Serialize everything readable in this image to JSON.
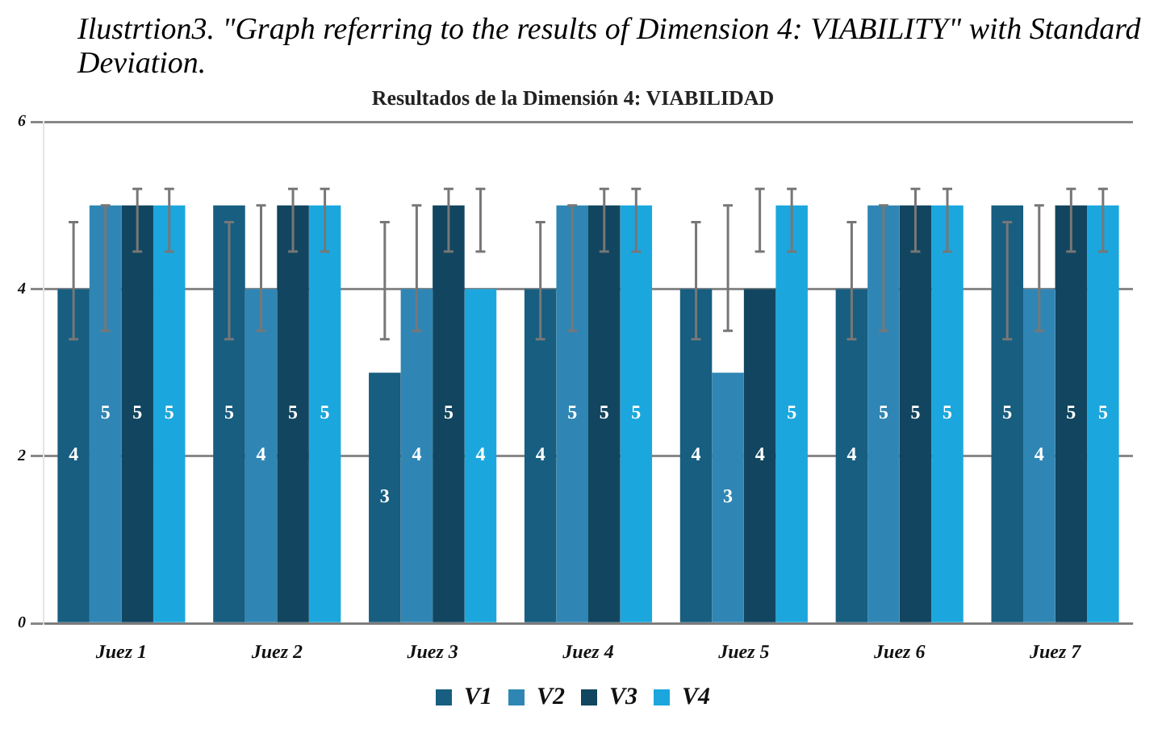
{
  "chart_data": {
    "type": "bar",
    "title": "Resultados de la Dimensión 4: VIABILIDAD",
    "annotations": [
      "Ilustrtion3. \"Graph referring to the results of Dimension 4: VIABILITY\" with Standard Deviation."
    ],
    "categories": [
      "Juez 1",
      "Juez 2",
      "Juez 3",
      "Juez 4",
      "Juez 5",
      "Juez 6",
      "Juez 7"
    ],
    "series": [
      {
        "name": "V1",
        "color": "#175e80",
        "values": [
          4,
          5,
          3,
          4,
          4,
          4,
          5
        ],
        "errors": [
          [
            3.4,
            4.8
          ],
          [
            3.4,
            4.8
          ],
          [
            3.4,
            4.8
          ],
          [
            3.4,
            4.8
          ],
          [
            3.4,
            4.8
          ],
          [
            3.4,
            4.8
          ],
          [
            3.4,
            4.8
          ]
        ]
      },
      {
        "name": "V2",
        "color": "#2f86b4",
        "values": [
          5,
          4,
          4,
          5,
          3,
          5,
          4
        ],
        "errors": [
          [
            3.5,
            5.0
          ],
          [
            3.5,
            5.0
          ],
          [
            3.5,
            5.0
          ],
          [
            3.5,
            5.0
          ],
          [
            3.5,
            5.0
          ],
          [
            3.5,
            5.0
          ],
          [
            3.5,
            5.0
          ]
        ]
      },
      {
        "name": "V3",
        "color": "#12455f",
        "values": [
          5,
          5,
          5,
          5,
          4,
          5,
          5
        ],
        "errors": [
          [
            4.45,
            5.2
          ],
          [
            4.45,
            5.2
          ],
          [
            4.45,
            5.2
          ],
          [
            4.45,
            5.2
          ],
          [
            4.45,
            5.2
          ],
          [
            4.45,
            5.2
          ],
          [
            4.45,
            5.2
          ]
        ]
      },
      {
        "name": "V4",
        "color": "#1ba7dd",
        "values": [
          5,
          5,
          4,
          5,
          5,
          5,
          5
        ],
        "errors": [
          [
            4.45,
            5.2
          ],
          [
            4.45,
            5.2
          ],
          [
            4.45,
            5.2
          ],
          [
            4.45,
            5.2
          ],
          [
            4.45,
            5.2
          ],
          [
            4.45,
            5.2
          ],
          [
            4.45,
            5.2
          ]
        ]
      }
    ],
    "ylim": [
      0,
      6
    ],
    "yticks": [
      0,
      2,
      4,
      6
    ],
    "grid": "y",
    "legend": "bottom",
    "data_labels": true
  }
}
